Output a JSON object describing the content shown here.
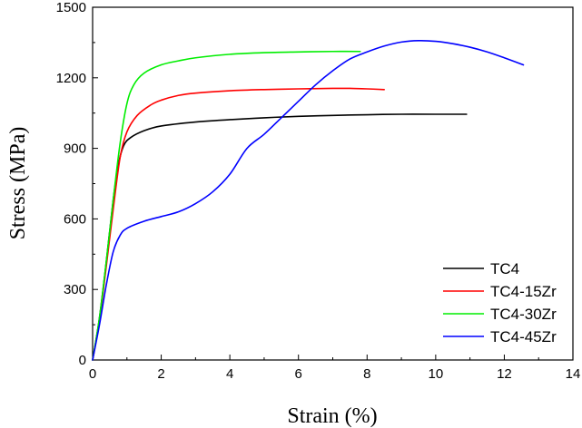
{
  "chart_data": {
    "type": "line",
    "xlabel": "Strain (%)",
    "ylabel": "Stress (MPa)",
    "xlim": [
      0,
      14
    ],
    "ylim": [
      0,
      1500
    ],
    "x_ticks": [
      0,
      2,
      4,
      6,
      8,
      10,
      12,
      14
    ],
    "y_ticks": [
      0,
      300,
      600,
      900,
      1200,
      1500
    ],
    "x_tick_labels": [
      "0",
      "2",
      "4",
      "6",
      "8",
      "10",
      "12",
      "14"
    ],
    "y_tick_labels": [
      "0",
      "300",
      "600",
      "900",
      "1200",
      "1500"
    ],
    "legend_position": "bottom-right",
    "series": [
      {
        "name": "TC4",
        "color": "#000000",
        "points": [
          [
            0,
            0
          ],
          [
            0.2,
            180
          ],
          [
            0.4,
            420
          ],
          [
            0.6,
            680
          ],
          [
            0.75,
            830
          ],
          [
            0.9,
            910
          ],
          [
            1.1,
            945
          ],
          [
            1.5,
            975
          ],
          [
            2,
            995
          ],
          [
            3,
            1012
          ],
          [
            4,
            1022
          ],
          [
            5,
            1030
          ],
          [
            6,
            1036
          ],
          [
            7,
            1040
          ],
          [
            8,
            1043
          ],
          [
            9,
            1045
          ],
          [
            10,
            1045
          ],
          [
            10.9,
            1045
          ]
        ]
      },
      {
        "name": "TC4-15Zr",
        "color": "#ff0000",
        "points": [
          [
            0,
            0
          ],
          [
            0.2,
            170
          ],
          [
            0.4,
            400
          ],
          [
            0.6,
            640
          ],
          [
            0.8,
            860
          ],
          [
            1,
            970
          ],
          [
            1.3,
            1040
          ],
          [
            1.7,
            1085
          ],
          [
            2,
            1105
          ],
          [
            2.5,
            1125
          ],
          [
            3,
            1135
          ],
          [
            4,
            1145
          ],
          [
            5,
            1150
          ],
          [
            6,
            1153
          ],
          [
            7,
            1155
          ],
          [
            7.5,
            1155
          ],
          [
            8,
            1153
          ],
          [
            8.5,
            1150
          ]
        ]
      },
      {
        "name": "TC4-30Zr",
        "color": "#00ee00",
        "points": [
          [
            0,
            0
          ],
          [
            0.2,
            180
          ],
          [
            0.4,
            420
          ],
          [
            0.6,
            680
          ],
          [
            0.8,
            920
          ],
          [
            1,
            1090
          ],
          [
            1.2,
            1170
          ],
          [
            1.5,
            1220
          ],
          [
            2,
            1255
          ],
          [
            2.5,
            1272
          ],
          [
            3,
            1285
          ],
          [
            4,
            1300
          ],
          [
            5,
            1307
          ],
          [
            6,
            1310
          ],
          [
            7,
            1312
          ],
          [
            7.8,
            1312
          ]
        ]
      },
      {
        "name": "TC4-45Zr",
        "color": "#0000ff",
        "points": [
          [
            0,
            0
          ],
          [
            0.2,
            150
          ],
          [
            0.4,
            320
          ],
          [
            0.6,
            460
          ],
          [
            0.8,
            530
          ],
          [
            1,
            560
          ],
          [
            1.5,
            590
          ],
          [
            2,
            610
          ],
          [
            2.5,
            630
          ],
          [
            3,
            665
          ],
          [
            3.5,
            715
          ],
          [
            4,
            790
          ],
          [
            4.5,
            900
          ],
          [
            5,
            960
          ],
          [
            5.5,
            1030
          ],
          [
            6,
            1100
          ],
          [
            6.5,
            1170
          ],
          [
            7,
            1230
          ],
          [
            7.5,
            1280
          ],
          [
            8,
            1310
          ],
          [
            8.5,
            1335
          ],
          [
            9,
            1352
          ],
          [
            9.5,
            1358
          ],
          [
            10,
            1355
          ],
          [
            10.5,
            1345
          ],
          [
            11,
            1330
          ],
          [
            11.5,
            1310
          ],
          [
            12,
            1285
          ],
          [
            12.5,
            1258
          ],
          [
            12.55,
            1255
          ]
        ]
      }
    ]
  }
}
